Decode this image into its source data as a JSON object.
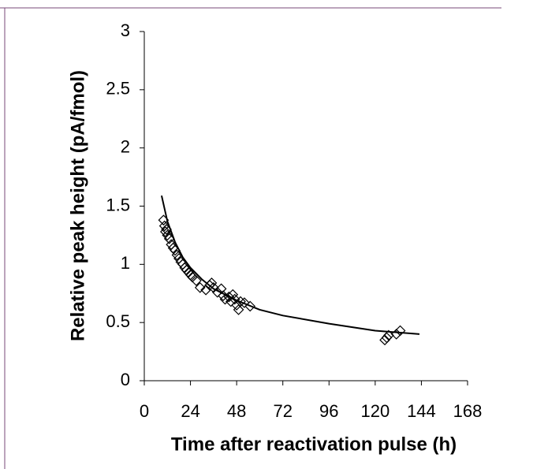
{
  "chart_data": {
    "type": "scatter",
    "x_label": "Time after reactivation pulse (h)",
    "y_label": "Relative peak height (pA/fmol)",
    "xlim": [
      0,
      168
    ],
    "xticks": [
      0,
      24,
      48,
      72,
      96,
      120,
      144,
      168
    ],
    "ylim": [
      0,
      3
    ],
    "yticks": [
      0,
      0.5,
      1,
      1.5,
      2,
      2.5,
      3
    ],
    "grid": false,
    "series": [
      {
        "type": "scatter",
        "marker": "diamond",
        "color": "#000000",
        "x": [
          10,
          10.5,
          11,
          11.5,
          12,
          13,
          14,
          15,
          16,
          17,
          18,
          19,
          20,
          21,
          22,
          23,
          24,
          25,
          27,
          29,
          32,
          34,
          35,
          36,
          38,
          40,
          41,
          42,
          44,
          45,
          46,
          47,
          48,
          49,
          50,
          52,
          55,
          125,
          126,
          127,
          131,
          133
        ],
        "values": [
          1.38,
          1.33,
          1.28,
          1.3,
          1.25,
          1.22,
          1.17,
          1.14,
          1.12,
          1.08,
          1.05,
          1.02,
          1.0,
          0.97,
          0.95,
          0.93,
          0.91,
          0.89,
          0.86,
          0.8,
          0.78,
          0.82,
          0.84,
          0.8,
          0.76,
          0.79,
          0.73,
          0.7,
          0.72,
          0.68,
          0.74,
          0.7,
          0.65,
          0.61,
          0.68,
          0.67,
          0.64,
          0.35,
          0.37,
          0.39,
          0.4,
          0.43
        ]
      },
      {
        "type": "line",
        "color": "#000000",
        "x": [
          9,
          12,
          16,
          20,
          24,
          30,
          36,
          48,
          60,
          72,
          96,
          120,
          143
        ],
        "values": [
          1.59,
          1.37,
          1.19,
          1.06,
          0.97,
          0.87,
          0.79,
          0.69,
          0.61,
          0.56,
          0.49,
          0.43,
          0.4
        ]
      }
    ]
  }
}
